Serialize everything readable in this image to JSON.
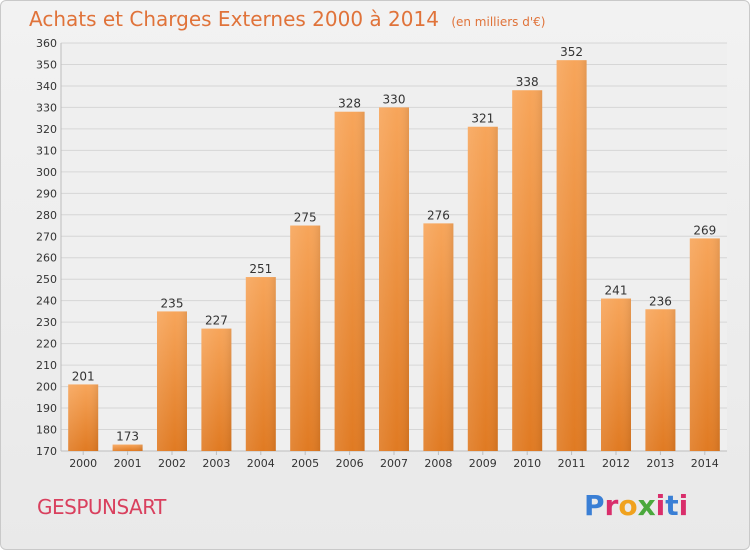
{
  "title": "Achats et Charges Externes 2000 à 2014",
  "unit_note": "(en milliers d'€)",
  "city": "GESPUNSART",
  "logo": {
    "text": "Proxiti",
    "colors": [
      "#3a7fd5",
      "#d92e6b",
      "#f0a21e",
      "#4aa83c",
      "#d92e6b",
      "#3a7fd5",
      "#d92e6b"
    ]
  },
  "colors": {
    "bar_top": "#f7a55a",
    "bar_bottom": "#e07a22",
    "title": "#e0733a",
    "city": "#d9405e",
    "grid": "#d6d6d6",
    "axis_text": "#333333"
  },
  "chart_data": {
    "type": "bar",
    "title": "Achats et Charges Externes 2000 à 2014",
    "subtitle": "(en milliers d'€)",
    "categories": [
      "2000",
      "2001",
      "2002",
      "2003",
      "2004",
      "2005",
      "2006",
      "2007",
      "2008",
      "2009",
      "2010",
      "2011",
      "2012",
      "2013",
      "2014"
    ],
    "values": [
      201,
      173,
      235,
      227,
      251,
      275,
      328,
      330,
      276,
      321,
      338,
      352,
      241,
      236,
      269
    ],
    "ylim": [
      170,
      360
    ],
    "yticks": [
      170,
      180,
      190,
      200,
      210,
      220,
      230,
      240,
      250,
      260,
      270,
      280,
      290,
      300,
      310,
      320,
      330,
      340,
      350,
      360
    ],
    "grid": true,
    "data_labels": true
  }
}
